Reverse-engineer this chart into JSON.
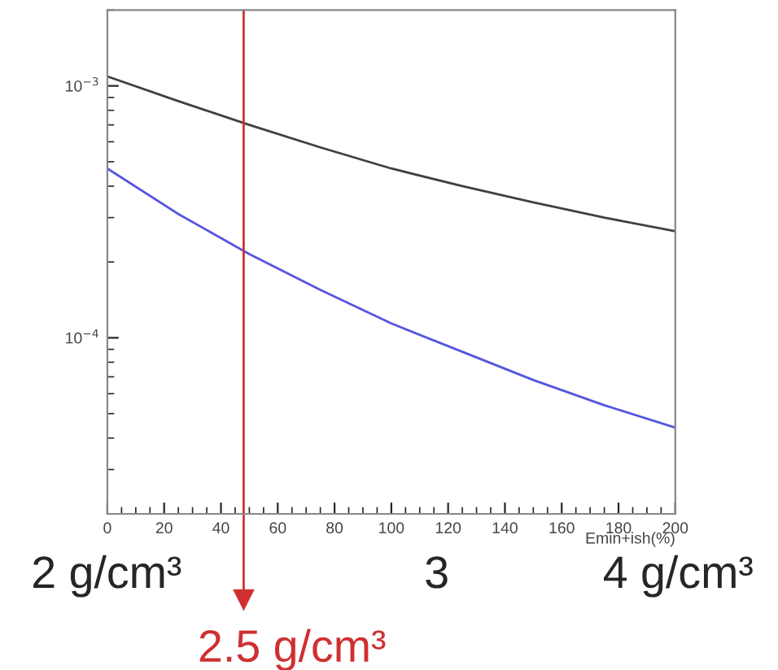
{
  "chart_data": {
    "type": "line",
    "xlabel": "Emin+ish(%)",
    "x": [
      0,
      25,
      50,
      75,
      100,
      125,
      150,
      175,
      200
    ],
    "series": [
      {
        "color": "#404040",
        "values": [
          0.00109,
          0.00087,
          0.0007,
          0.00057,
          0.00047,
          0.0004,
          0.000345,
          0.0003,
          0.000265
        ]
      },
      {
        "color": "#5555e0",
        "values": [
          0.00047,
          0.00031,
          0.000215,
          0.000155,
          0.000114,
          8.8e-05,
          6.8e-05,
          5.4e-05,
          4.4e-05
        ]
      }
    ],
    "log": "y",
    "xlim": [
      0,
      200
    ],
    "ylim": [
      2e-05,
      0.002
    ],
    "xticks": [
      0,
      20,
      40,
      60,
      80,
      100,
      120,
      140,
      160,
      180,
      200
    ],
    "yticks": [
      {
        "value": 0.0001,
        "label": "10$^{−4}$"
      },
      {
        "value": 0.001,
        "label": "10$^{−3}$"
      }
    ],
    "ref_lines": [
      {
        "axis": "x",
        "value": 48,
        "label": "2.5 g/cm³",
        "color": "#d03030"
      }
    ],
    "annotations": [
      "2 g/cm³",
      "3",
      "4 g/cm³"
    ],
    "grid": false,
    "marker": "none",
    "line_style": "solid"
  }
}
